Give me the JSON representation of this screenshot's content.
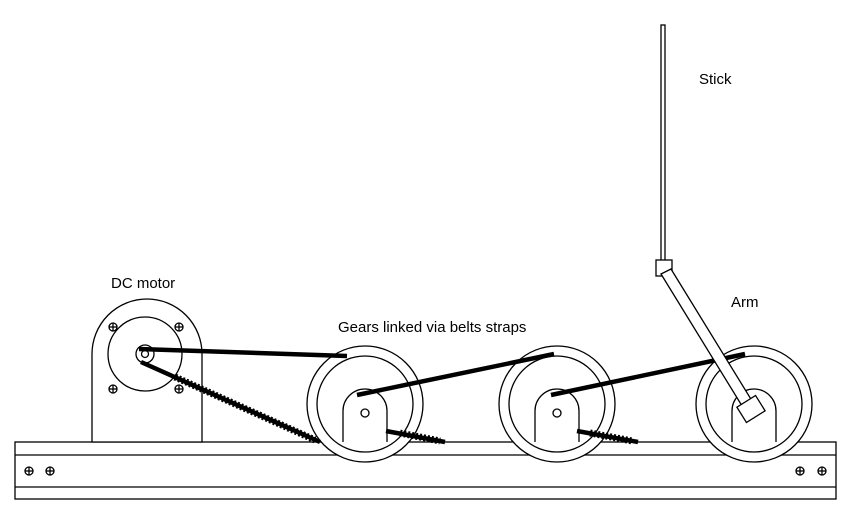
{
  "labels": {
    "stick": "Stick",
    "arm": "Arm",
    "motor": "DC motor",
    "gears": "Gears linked via belts straps"
  },
  "components": {
    "motor": "dc-motor",
    "pulleys": [
      "pulley-1",
      "pulley-2",
      "pulley-3"
    ],
    "belts": [
      "belt-motor-pulley-1",
      "belt-pulley-1-pulley-2",
      "belt-pulley-2-pulley-3"
    ],
    "base": "base-rail"
  },
  "icons": {
    "screw": "screw-icon"
  },
  "colors": {
    "line": "#000000",
    "background": "#ffffff"
  }
}
